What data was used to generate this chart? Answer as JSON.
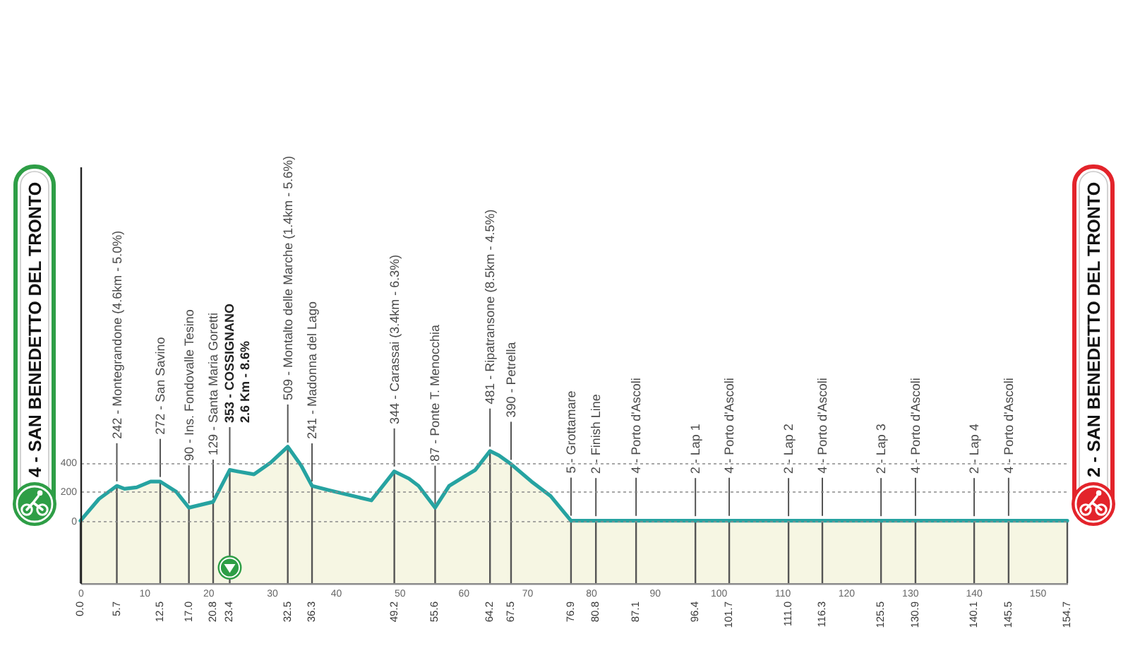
{
  "chart_data": {
    "type": "area",
    "color": "#26a3a1",
    "grid": "y",
    "xlim": [
      0,
      154.7
    ],
    "xticks": [
      0,
      10,
      20,
      30,
      40,
      50,
      60,
      70,
      80,
      90,
      100,
      110,
      120,
      130,
      140,
      150
    ],
    "ylim": [
      -430,
      2440
    ],
    "yticks": [
      0,
      200,
      400
    ],
    "x": [
      0,
      2.9,
      5.7,
      6.9,
      8.8,
      11.0,
      12.5,
      15.0,
      17.0,
      20.8,
      23.4,
      24.6,
      27.2,
      29.8,
      32.5,
      34.6,
      36.3,
      39.0,
      45.6,
      49.2,
      51.5,
      53.0,
      55.6,
      57.8,
      60.0,
      61.9,
      64.2,
      65.6,
      67.5,
      70.7,
      73.7,
      76.9,
      80.8,
      87.1,
      96.4,
      101.7,
      111.0,
      116.3,
      125.5,
      130.9,
      140.1,
      145.5,
      154.7
    ],
    "values": [
      0,
      150,
      240,
      220,
      230,
      270,
      270,
      200,
      90,
      130,
      350,
      340,
      320,
      400,
      510,
      380,
      240,
      210,
      140,
      340,
      290,
      240,
      90,
      240,
      300,
      350,
      480,
      450,
      390,
      270,
      170,
      0,
      0,
      0,
      0,
      0,
      0,
      0,
      0,
      0,
      0,
      0,
      0
    ],
    "bands": [
      {
        "axis": "y",
        "from": -430,
        "to": 0,
        "color": "#f6f6e3"
      }
    ],
    "ref_lines": [
      {
        "axis": "x",
        "value": 0,
        "label": "0.0"
      },
      {
        "axis": "x",
        "value": 5.7,
        "label": "5.7"
      },
      {
        "axis": "x",
        "value": 12.5,
        "label": "12.5"
      },
      {
        "axis": "x",
        "value": 17.0,
        "label": "17.0"
      },
      {
        "axis": "x",
        "value": 20.8,
        "label": "20.8"
      },
      {
        "axis": "x",
        "value": 23.4,
        "label": "23.4"
      },
      {
        "axis": "x",
        "value": 32.5,
        "label": "32.5"
      },
      {
        "axis": "x",
        "value": 36.3,
        "label": "36.3"
      },
      {
        "axis": "x",
        "value": 49.2,
        "label": "49.2"
      },
      {
        "axis": "x",
        "value": 55.6,
        "label": "55.6"
      },
      {
        "axis": "x",
        "value": 64.2,
        "label": "64.2"
      },
      {
        "axis": "x",
        "value": 67.5,
        "label": "67.5"
      },
      {
        "axis": "x",
        "value": 76.9,
        "label": "76.9"
      },
      {
        "axis": "x",
        "value": 80.8,
        "label": "80.8"
      },
      {
        "axis": "x",
        "value": 87.1,
        "label": "87.1"
      },
      {
        "axis": "x",
        "value": 96.4,
        "label": "96.4"
      },
      {
        "axis": "x",
        "value": 101.7,
        "label": "101.7"
      },
      {
        "axis": "x",
        "value": 111.0,
        "label": "111.0"
      },
      {
        "axis": "x",
        "value": 116.3,
        "label": "116.3"
      },
      {
        "axis": "x",
        "value": 125.5,
        "label": "125.5"
      },
      {
        "axis": "x",
        "value": 130.9,
        "label": "130.9"
      },
      {
        "axis": "x",
        "value": 140.1,
        "label": "140.1"
      },
      {
        "axis": "x",
        "value": 145.5,
        "label": "145.5"
      },
      {
        "axis": "x",
        "value": 154.7,
        "label": "154.7"
      }
    ],
    "annotations": [
      "4 - SAN BENEDETTO DEL TRONTO",
      {
        "text": "242 - Montegrandone (4.6km - 5.0%)",
        "x": 5.7,
        "y": 242
      },
      {
        "text": "272 - San Savino",
        "x": 12.5,
        "y": 272
      },
      {
        "text": "90 - Ins. Fondovalle Tesino",
        "x": 17.0,
        "y": 90
      },
      {
        "text": "129 - Santa Maria Goretti",
        "x": 20.8,
        "y": 129
      },
      {
        "text": "353 - COSSIGNANO\n2.6 Km - 8.6%",
        "x": 23.4,
        "y": 353
      },
      {
        "text": "509 - Montalto delle Marche (1.4km - 5.6%)",
        "x": 32.5,
        "y": 509
      },
      {
        "text": "241 - Madonna del Lago",
        "x": 36.3,
        "y": 241
      },
      {
        "text": "344 - Carassai (3.4km - 6.3%)",
        "x": 49.2,
        "y": 344
      },
      {
        "text": "87 - Ponte T. Menocchia",
        "x": 55.6,
        "y": 87
      },
      {
        "text": "481 - Ripatransone (8.5km - 4.5%)",
        "x": 64.2,
        "y": 481
      },
      {
        "text": "390 - Petrella",
        "x": 67.5,
        "y": 390
      },
      {
        "text": "5 - Grottamare",
        "x": 76.9,
        "y": 5
      },
      {
        "text": "2 - Finish Line",
        "x": 80.8,
        "y": 2
      },
      {
        "text": "4 - Porto d'Ascoli",
        "x": 87.1,
        "y": 4
      },
      {
        "text": "2 - Lap 1",
        "x": 96.4,
        "y": 2
      },
      {
        "text": "4 - Porto d'Ascoli",
        "x": 101.7,
        "y": 4
      },
      {
        "text": "2 - Lap 2",
        "x": 111.0,
        "y": 2
      },
      {
        "text": "4 - Porto d'Ascoli",
        "x": 116.3,
        "y": 4
      },
      {
        "text": "2 - Lap 3",
        "x": 125.5,
        "y": 2
      },
      {
        "text": "4 - Porto d'Ascoli",
        "x": 130.9,
        "y": 4
      },
      {
        "text": "2 - Lap 4",
        "x": 140.1,
        "y": 2
      },
      {
        "text": "4 - Porto d'Ascoli",
        "x": 145.5,
        "y": 4
      },
      "2 - SAN BENEDETTO DEL TRONTO"
    ]
  }
}
